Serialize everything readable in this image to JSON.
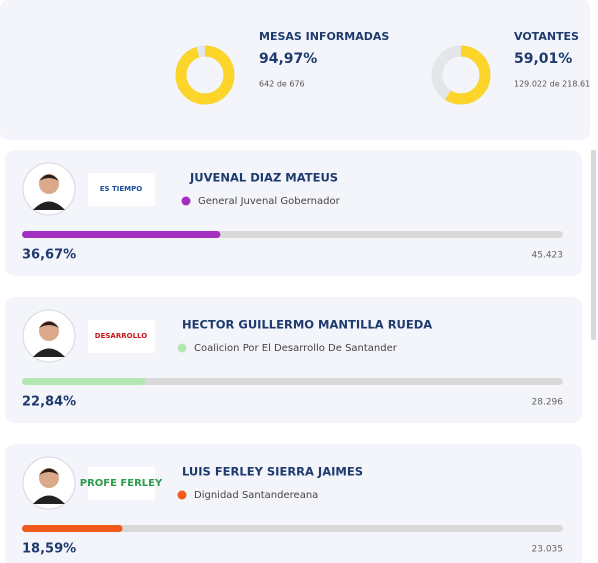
{
  "header": {
    "stats": [
      {
        "label": "MESAS INFORMADAS",
        "percent": {
          "value": 94.97,
          "label": "94,97%"
        },
        "detail": "642  de  676"
      },
      {
        "label": "VOTANTES",
        "percent": {
          "value": 59.01,
          "label": "59,01%"
        },
        "detail": "129.022  de  218.61"
      }
    ]
  },
  "candidates": [
    {
      "name": "JUVENAL DIAZ MATEUS",
      "party": "General Juvenal Gobernador",
      "color": "#a22fc0",
      "logo": "ES TIEMPO",
      "percent": {
        "value": 36.67,
        "label": "36,67%"
      },
      "votes": "45.423"
    },
    {
      "name": "HECTOR GUILLERMO MANTILLA RUEDA",
      "party": "Coalicion Por El Desarrollo De Santander",
      "color": "#b3e8b3",
      "logo": "DESARROLLO",
      "percent": {
        "value": 22.84,
        "label": "22,84%"
      },
      "votes": "28.296"
    },
    {
      "name": "LUIS FERLEY SIERRA JAIMES",
      "party": "Dignidad Santandereana",
      "color": "#f05a1c",
      "logo": "PROFE FERLEY",
      "percent": {
        "value": 18.59,
        "label": "18,59%"
      },
      "votes": "23.035"
    }
  ]
}
